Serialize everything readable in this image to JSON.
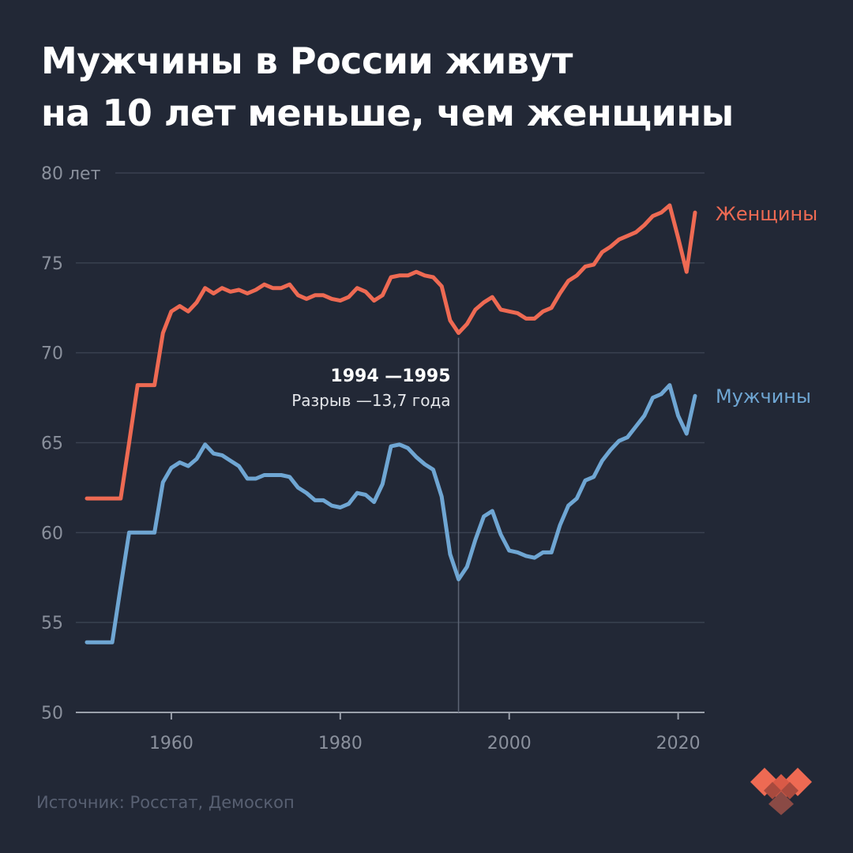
{
  "header": {
    "title_line1": "Мужчины в России живут",
    "title_line2": "на 10 лет меньше, чем женщины"
  },
  "footer": {
    "source": "Источник: Росстат, Демоскоп"
  },
  "colors": {
    "background": "#222836",
    "women": "#ee6a53",
    "men": "#6fa6d3",
    "axis_text": "#8a909c",
    "grid": "#3a4150"
  },
  "chart_data": {
    "type": "line",
    "title": "Мужчины в России живут на 10 лет меньше, чем женщины",
    "ylim": [
      50,
      80
    ],
    "xlim": [
      1950,
      2022
    ],
    "y_ticks": [
      {
        "value": 80,
        "label": "80 лет"
      },
      {
        "value": 75,
        "label": "75"
      },
      {
        "value": 70,
        "label": "70"
      },
      {
        "value": 65,
        "label": "65"
      },
      {
        "value": 60,
        "label": "60"
      },
      {
        "value": 55,
        "label": "55"
      },
      {
        "value": 50,
        "label": "50"
      }
    ],
    "x_ticks": [
      {
        "value": 1960,
        "label": "1960"
      },
      {
        "value": 1980,
        "label": "1980"
      },
      {
        "value": 2000,
        "label": "2000"
      },
      {
        "value": 2020,
        "label": "2020"
      }
    ],
    "grid": true,
    "series": [
      {
        "name": "Женщины",
        "color": "#ee6a53",
        "points": [
          [
            1950,
            61.9
          ],
          [
            1951,
            61.9
          ],
          [
            1952,
            61.9
          ],
          [
            1953,
            61.9
          ],
          [
            1954,
            61.9
          ],
          [
            1955,
            65.0
          ],
          [
            1956,
            68.2
          ],
          [
            1957,
            68.2
          ],
          [
            1958,
            68.2
          ],
          [
            1959,
            71.1
          ],
          [
            1960,
            72.3
          ],
          [
            1961,
            72.6
          ],
          [
            1962,
            72.3
          ],
          [
            1963,
            72.8
          ],
          [
            1964,
            73.6
          ],
          [
            1965,
            73.3
          ],
          [
            1966,
            73.6
          ],
          [
            1967,
            73.4
          ],
          [
            1968,
            73.5
          ],
          [
            1969,
            73.3
          ],
          [
            1970,
            73.5
          ],
          [
            1971,
            73.8
          ],
          [
            1972,
            73.6
          ],
          [
            1973,
            73.6
          ],
          [
            1974,
            73.8
          ],
          [
            1975,
            73.2
          ],
          [
            1976,
            73.0
          ],
          [
            1977,
            73.2
          ],
          [
            1978,
            73.2
          ],
          [
            1979,
            73.0
          ],
          [
            1980,
            72.9
          ],
          [
            1981,
            73.1
          ],
          [
            1982,
            73.6
          ],
          [
            1983,
            73.4
          ],
          [
            1984,
            72.9
          ],
          [
            1985,
            73.2
          ],
          [
            1986,
            74.2
          ],
          [
            1987,
            74.3
          ],
          [
            1988,
            74.3
          ],
          [
            1989,
            74.5
          ],
          [
            1990,
            74.3
          ],
          [
            1991,
            74.2
          ],
          [
            1992,
            73.7
          ],
          [
            1993,
            71.8
          ],
          [
            1994,
            71.1
          ],
          [
            1995,
            71.6
          ],
          [
            1996,
            72.4
          ],
          [
            1997,
            72.8
          ],
          [
            1998,
            73.1
          ],
          [
            1999,
            72.4
          ],
          [
            2000,
            72.3
          ],
          [
            2001,
            72.2
          ],
          [
            2002,
            71.9
          ],
          [
            2003,
            71.9
          ],
          [
            2004,
            72.3
          ],
          [
            2005,
            72.5
          ],
          [
            2006,
            73.3
          ],
          [
            2007,
            74.0
          ],
          [
            2008,
            74.3
          ],
          [
            2009,
            74.8
          ],
          [
            2010,
            74.9
          ],
          [
            2011,
            75.6
          ],
          [
            2012,
            75.9
          ],
          [
            2013,
            76.3
          ],
          [
            2014,
            76.5
          ],
          [
            2015,
            76.7
          ],
          [
            2016,
            77.1
          ],
          [
            2017,
            77.6
          ],
          [
            2018,
            77.8
          ],
          [
            2019,
            78.2
          ],
          [
            2020,
            76.4
          ],
          [
            2021,
            74.5
          ],
          [
            2022,
            77.8
          ]
        ]
      },
      {
        "name": "Мужчины",
        "color": "#6fa6d3",
        "points": [
          [
            1950,
            53.9
          ],
          [
            1951,
            53.9
          ],
          [
            1952,
            53.9
          ],
          [
            1953,
            53.9
          ],
          [
            1954,
            57.0
          ],
          [
            1955,
            60.0
          ],
          [
            1956,
            60.0
          ],
          [
            1957,
            60.0
          ],
          [
            1958,
            60.0
          ],
          [
            1959,
            62.8
          ],
          [
            1960,
            63.6
          ],
          [
            1961,
            63.9
          ],
          [
            1962,
            63.7
          ],
          [
            1963,
            64.1
          ],
          [
            1964,
            64.9
          ],
          [
            1965,
            64.4
          ],
          [
            1966,
            64.3
          ],
          [
            1967,
            64.0
          ],
          [
            1968,
            63.7
          ],
          [
            1969,
            63.0
          ],
          [
            1970,
            63.0
          ],
          [
            1971,
            63.2
          ],
          [
            1972,
            63.2
          ],
          [
            1973,
            63.2
          ],
          [
            1974,
            63.1
          ],
          [
            1975,
            62.5
          ],
          [
            1976,
            62.2
          ],
          [
            1977,
            61.8
          ],
          [
            1978,
            61.8
          ],
          [
            1979,
            61.5
          ],
          [
            1980,
            61.4
          ],
          [
            1981,
            61.6
          ],
          [
            1982,
            62.2
          ],
          [
            1983,
            62.1
          ],
          [
            1984,
            61.7
          ],
          [
            1985,
            62.7
          ],
          [
            1986,
            64.8
          ],
          [
            1987,
            64.9
          ],
          [
            1988,
            64.7
          ],
          [
            1989,
            64.2
          ],
          [
            1990,
            63.8
          ],
          [
            1991,
            63.5
          ],
          [
            1992,
            62.0
          ],
          [
            1993,
            58.8
          ],
          [
            1994,
            57.4
          ],
          [
            1995,
            58.1
          ],
          [
            1996,
            59.6
          ],
          [
            1997,
            60.9
          ],
          [
            1998,
            61.2
          ],
          [
            1999,
            59.9
          ],
          [
            2000,
            59.0
          ],
          [
            2001,
            58.9
          ],
          [
            2002,
            58.7
          ],
          [
            2003,
            58.6
          ],
          [
            2004,
            58.9
          ],
          [
            2005,
            58.9
          ],
          [
            2006,
            60.4
          ],
          [
            2007,
            61.5
          ],
          [
            2008,
            61.9
          ],
          [
            2009,
            62.9
          ],
          [
            2010,
            63.1
          ],
          [
            2011,
            64.0
          ],
          [
            2012,
            64.6
          ],
          [
            2013,
            65.1
          ],
          [
            2014,
            65.3
          ],
          [
            2015,
            65.9
          ],
          [
            2016,
            66.5
          ],
          [
            2017,
            67.5
          ],
          [
            2018,
            67.7
          ],
          [
            2019,
            68.2
          ],
          [
            2020,
            66.5
          ],
          [
            2021,
            65.5
          ],
          [
            2022,
            67.6
          ]
        ]
      }
    ],
    "annotation": {
      "x": 1994,
      "title": "1994 —1995",
      "text": "Разрыв —13,7 года"
    }
  }
}
